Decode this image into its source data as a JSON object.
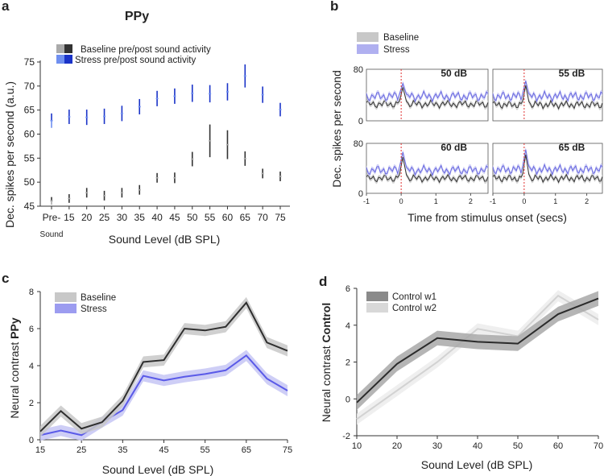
{
  "panel_labels": [
    "a",
    "b",
    "c",
    "d"
  ],
  "chart_data": [
    {
      "panel": "a",
      "type": "scatter",
      "title": "PPy",
      "xlabel": "Sound Level (dB SPL)",
      "ylabel": "Dec. spikes per second  (a.u.)",
      "ylim": [
        45,
        75
      ],
      "yticks": [
        "45",
        "50",
        "55",
        "60",
        "65",
        "70",
        "75"
      ],
      "categories": [
        "Pre-",
        "15",
        "20",
        "25",
        "30",
        "35",
        "40",
        "45",
        "50",
        "55",
        "60",
        "65",
        "70",
        "75"
      ],
      "pre_sub_label": "Sound",
      "legend": [
        "Baseline pre/post sound activity",
        "Stress pre/post sound activity"
      ],
      "series": [
        {
          "name": "Baseline",
          "values": [
            46.1,
            46.6,
            47.8,
            47.2,
            47.8,
            48.4,
            50.9,
            50.9,
            54.8,
            58.6,
            57.8,
            54.9,
            51.8,
            51.2
          ],
          "errors": [
            0.8,
            0.9,
            1.0,
            1.0,
            1.0,
            1.0,
            1.0,
            1.1,
            1.5,
            3.4,
            3.0,
            1.5,
            1.0,
            1.0
          ]
        },
        {
          "name": "Stress",
          "values": [
            62.8,
            63.6,
            63.5,
            63.7,
            64.3,
            65.7,
            67.4,
            67.9,
            68.5,
            68.4,
            68.8,
            72.1,
            68.2,
            65.1
          ],
          "errors": [
            1.5,
            1.5,
            1.6,
            1.6,
            1.6,
            1.6,
            1.6,
            1.6,
            1.8,
            1.8,
            1.8,
            2.4,
            1.7,
            1.4
          ]
        }
      ],
      "colors": {
        "baseline_light": "#aaaaaa",
        "baseline_dark": "#333333",
        "stress_light": "#6f8ff0",
        "stress_dark": "#1a33c8"
      }
    },
    {
      "panel": "b",
      "type": "line",
      "xlabel": "Time from stimulus onset (secs)",
      "ylabel": "Dec. spikes per second",
      "xlim": [
        -1,
        2.5
      ],
      "xticks": [
        "-1",
        "0",
        "1",
        "2"
      ],
      "ylim": [
        0,
        80
      ],
      "yticks": [
        "0",
        "80"
      ],
      "legend": [
        "Baseline",
        "Stress"
      ],
      "subplots": [
        {
          "label": "50 dB",
          "baseline_level": 26,
          "stress_level": 38,
          "baseline_peak": 52,
          "stress_peak": 58
        },
        {
          "label": "55 dB",
          "baseline_level": 25,
          "stress_level": 38,
          "baseline_peak": 55,
          "stress_peak": 62
        },
        {
          "label": "60 dB",
          "baseline_level": 24,
          "stress_level": 37,
          "baseline_peak": 58,
          "stress_peak": 66
        },
        {
          "label": "65 dB",
          "baseline_level": 24,
          "stress_level": 38,
          "baseline_peak": 62,
          "stress_peak": 70
        }
      ],
      "colors": {
        "baseline": "#333333",
        "baseline_band": "#c8c8c8",
        "stress": "#6a6ae0",
        "stress_band": "#c4c4f4",
        "onset": "#e03030"
      }
    },
    {
      "panel": "c",
      "type": "line",
      "xlabel": "Sound Level (dB SPL)",
      "ylabel": "Neural contrast",
      "ylabel_bold": "PPy",
      "x": [
        15,
        20,
        25,
        30,
        35,
        40,
        45,
        50,
        55,
        60,
        65,
        70,
        75
      ],
      "xticks": [
        "15",
        "25",
        "35",
        "45",
        "55",
        "65",
        "75"
      ],
      "ylim": [
        0,
        8
      ],
      "yticks": [
        "0",
        "2",
        "4",
        "6",
        "8"
      ],
      "legend": [
        "Baseline",
        "Stress"
      ],
      "series": [
        {
          "name": "Baseline",
          "values": [
            0.45,
            1.55,
            0.6,
            0.95,
            2.1,
            4.2,
            4.3,
            6.0,
            5.9,
            6.1,
            7.4,
            5.25,
            4.8
          ],
          "band": 0.3
        },
        {
          "name": "Stress",
          "values": [
            0.25,
            0.5,
            0.25,
            0.95,
            1.6,
            3.45,
            3.2,
            3.4,
            3.55,
            3.75,
            4.55,
            3.3,
            2.65
          ],
          "band": 0.3
        }
      ],
      "colors": {
        "baseline": "#2e2e2e",
        "baseline_band": "#c8c8c8",
        "stress": "#5a5ae8",
        "stress_band": "#c6c6f4"
      }
    },
    {
      "panel": "d",
      "type": "line",
      "xlabel": "Sound Level (dB SPL)",
      "ylabel": "Neural contrast",
      "ylabel_bold": "Control",
      "x": [
        10,
        20,
        30,
        40,
        50,
        60,
        70
      ],
      "xticks": [
        "10",
        "20",
        "30",
        "40",
        "50",
        "60",
        "70"
      ],
      "ylim": [
        -2,
        6
      ],
      "yticks": [
        "-2",
        "0",
        "2",
        "4",
        "6"
      ],
      "legend": [
        "Control w1",
        "Control w2"
      ],
      "series": [
        {
          "name": "Control w1",
          "values": [
            -0.2,
            1.9,
            3.3,
            3.1,
            3.0,
            4.6,
            5.45
          ],
          "band": 0.4
        },
        {
          "name": "Control w2",
          "values": [
            -1.1,
            0.45,
            2.0,
            3.8,
            3.4,
            5.6,
            4.3
          ],
          "band": 0.3
        }
      ],
      "colors": {
        "w1": "#2b2b2b",
        "w1_band": "#a8a8a8",
        "w2": "#d2d2d2",
        "w2_band": "#ececec"
      }
    }
  ]
}
